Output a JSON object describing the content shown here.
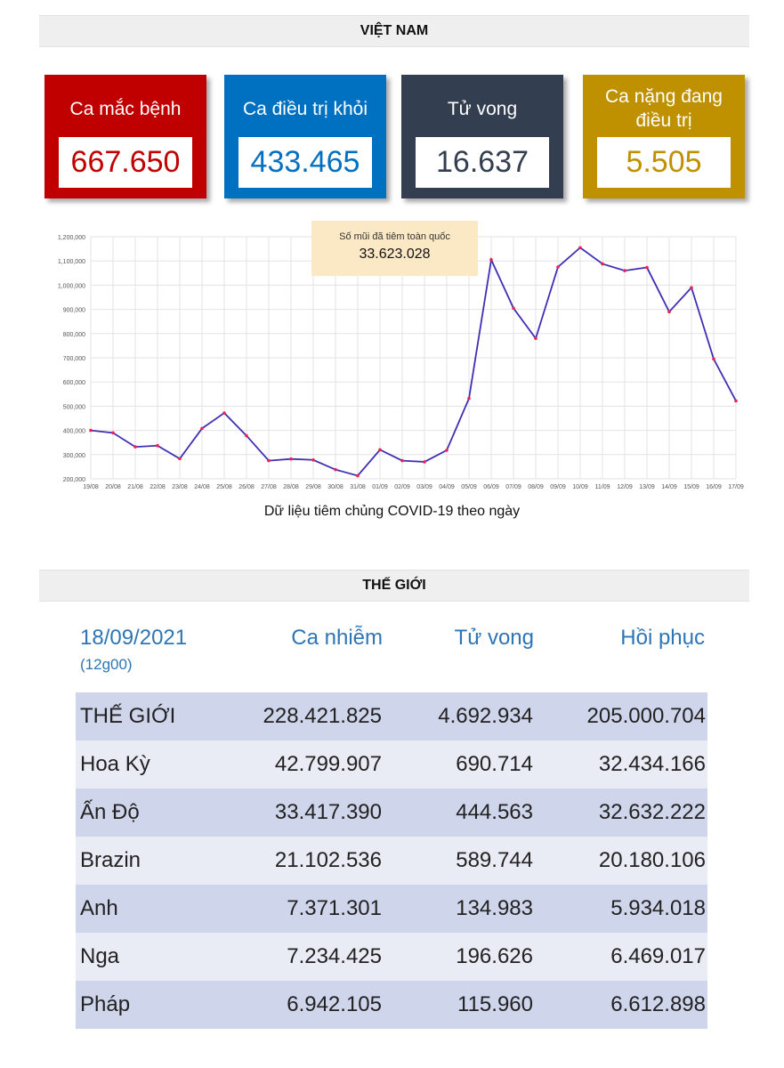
{
  "vietnam": {
    "title": "VIỆT NAM",
    "cards": [
      {
        "label": "Ca mắc bệnh",
        "value": "667.650"
      },
      {
        "label": "Ca điều trị khỏi",
        "value": "433.465"
      },
      {
        "label": "Tử vong",
        "value": "16.637"
      },
      {
        "label": "Ca nặng đang điều trị",
        "value": "5.505"
      }
    ],
    "colors": {
      "cases": "#c00000",
      "recovered": "#0070c0",
      "deaths": "#333f50",
      "severe": "#bf9000"
    }
  },
  "vaccine": {
    "tooltip_title": "Số mũi đã tiêm toàn quốc",
    "tooltip_value": "33.623.028",
    "caption": "Dữ liệu tiêm chủng COVID-19 theo ngày"
  },
  "chart_data": {
    "type": "line",
    "title": "",
    "xlabel": "",
    "ylabel": "",
    "categories": [
      "19/08",
      "20/08",
      "21/08",
      "22/08",
      "23/08",
      "24/08",
      "25/08",
      "26/08",
      "27/08",
      "28/08",
      "29/08",
      "30/08",
      "31/08",
      "01/09",
      "02/09",
      "03/09",
      "04/09",
      "05/09",
      "06/09",
      "07/09",
      "08/09",
      "09/09",
      "10/09",
      "11/09",
      "12/09",
      "13/09",
      "14/09",
      "15/09",
      "16/09",
      "17/09"
    ],
    "values": [
      400000,
      390000,
      332000,
      337000,
      283000,
      408000,
      472000,
      378000,
      275000,
      282000,
      278000,
      238000,
      213000,
      320000,
      275000,
      270000,
      318000,
      532000,
      1105000,
      905000,
      780000,
      1075000,
      1155000,
      1088000,
      1060000,
      1073000,
      890000,
      990000,
      695000,
      522000
    ],
    "yticks": [
      "200,000",
      "300,000",
      "400,000",
      "500,000",
      "600,000",
      "700,000",
      "800,000",
      "900,000",
      "1,000,000",
      "1,100,000",
      "1,200,000"
    ],
    "ylim": [
      200000,
      1200000
    ],
    "grid": true,
    "line_color": "#3f2fb5",
    "point_color": "#e8244f"
  },
  "world": {
    "title": "THẾ GIỚI",
    "header": {
      "date": "18/09/2021",
      "time": "(12g00)",
      "cases": "Ca nhiễm",
      "deaths": "Tử vong",
      "recovered": "Hồi phục"
    },
    "rows": [
      {
        "name": "THẾ GIỚI",
        "cases": "228.421.825",
        "deaths": "4.692.934",
        "recovered": "205.000.704"
      },
      {
        "name": "Hoa Kỳ",
        "cases": "42.799.907",
        "deaths": "690.714",
        "recovered": "32.434.166"
      },
      {
        "name": "Ấn Độ",
        "cases": "33.417.390",
        "deaths": "444.563",
        "recovered": "32.632.222"
      },
      {
        "name": "Brazin",
        "cases": "21.102.536",
        "deaths": "589.744",
        "recovered": "20.180.106"
      },
      {
        "name": "Anh",
        "cases": "7.371.301",
        "deaths": "134.983",
        "recovered": "5.934.018"
      },
      {
        "name": "Nga",
        "cases": "7.234.425",
        "deaths": "196.626",
        "recovered": "6.469.017"
      },
      {
        "name": "Pháp",
        "cases": "6.942.105",
        "deaths": "115.960",
        "recovered": "6.612.898"
      }
    ]
  }
}
